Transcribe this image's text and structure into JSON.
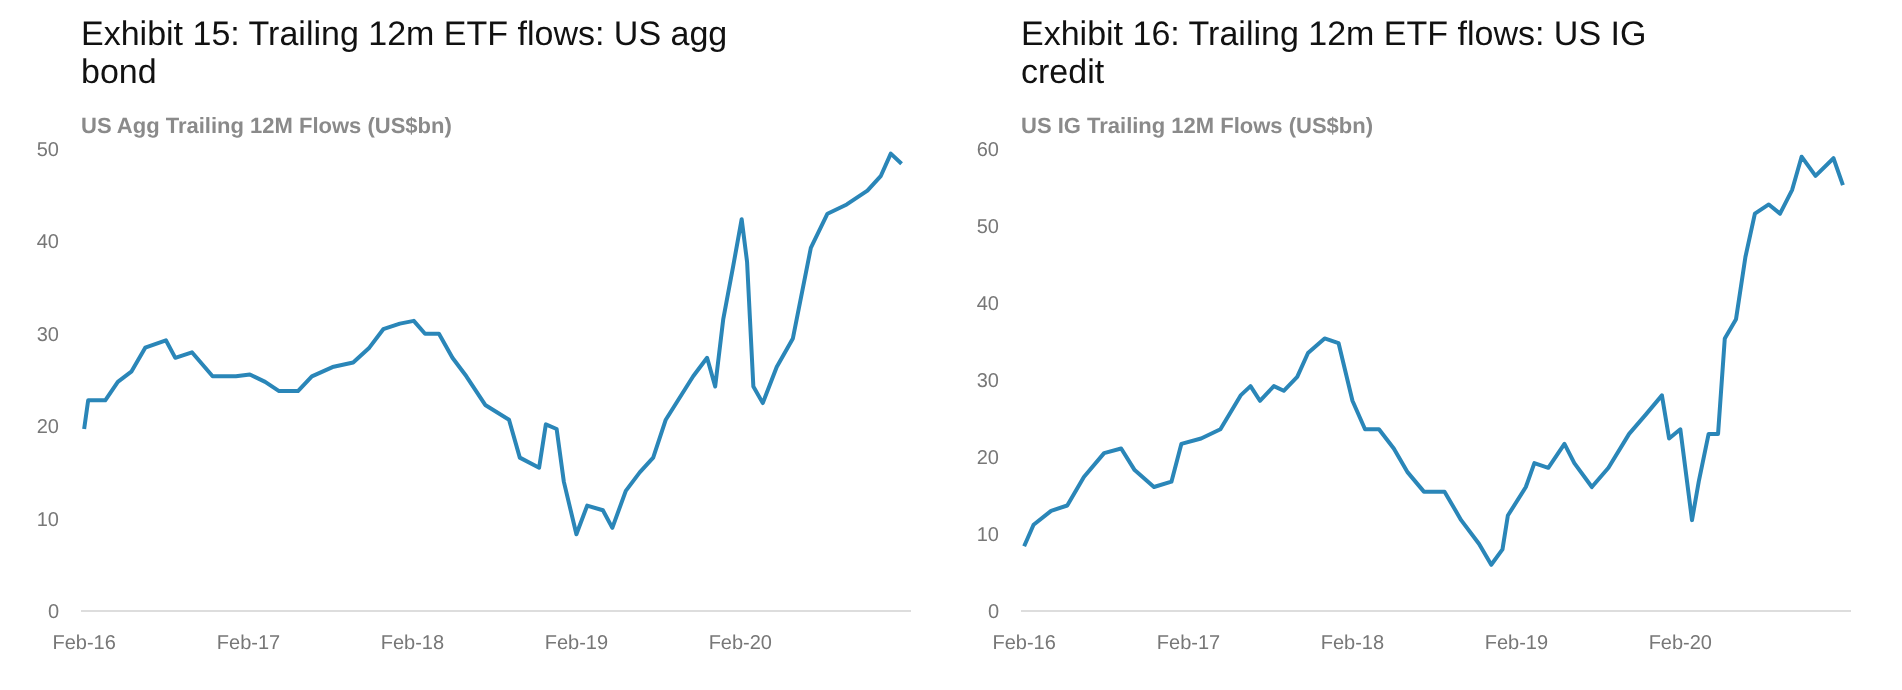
{
  "chart_data": [
    {
      "type": "line",
      "title": "Exhibit 15:  Trailing 12m ETF flows: US agg bond",
      "subtitle": "US Agg Trailing 12M Flows (US$bn)",
      "x": [
        "2016-02-01",
        "2016-02-10",
        "2016-03-19",
        "2016-04-16",
        "2016-05-16",
        "2016-06-16",
        "2016-08-01",
        "2016-08-22",
        "2016-09-28",
        "2016-11-13",
        "2017-01-04",
        "2017-02-04",
        "2017-03-10",
        "2017-04-10",
        "2017-05-22",
        "2017-06-22",
        "2017-08-07",
        "2017-09-22",
        "2017-10-28",
        "2017-11-28",
        "2018-01-04",
        "2018-02-04",
        "2018-03-01",
        "2018-04-01",
        "2018-05-01",
        "2018-06-01",
        "2018-07-13",
        "2018-09-04",
        "2018-09-28",
        "2018-11-10",
        "2018-11-25",
        "2018-12-19",
        "2019-01-04",
        "2019-02-01",
        "2019-02-25",
        "2019-04-01",
        "2019-04-22",
        "2019-05-22",
        "2019-06-22",
        "2019-07-22",
        "2019-08-19",
        "2019-10-19",
        "2019-11-19",
        "2019-12-07",
        "2019-12-25",
        "2020-01-16",
        "2020-02-04",
        "2020-02-16",
        "2020-03-01",
        "2020-03-22",
        "2020-04-22",
        "2020-05-28",
        "2020-07-07",
        "2020-08-13",
        "2020-09-25",
        "2020-11-10",
        "2020-12-10",
        "2021-01-01",
        "2021-01-25"
      ],
      "series": [
        {
          "color": "#2a86b8",
          "values": [
            19.7,
            22.8,
            22.8,
            24.8,
            25.9,
            28.5,
            29.3,
            27.4,
            28,
            25.4,
            25.4,
            25.6,
            24.8,
            23.8,
            23.8,
            25.4,
            26.4,
            26.9,
            28.5,
            30.5,
            31.1,
            31.4,
            30,
            30,
            27.4,
            25.4,
            22.3,
            20.7,
            16.6,
            15.5,
            20.2,
            19.7,
            14,
            8.3,
            11.4,
            10.9,
            9,
            13,
            15,
            16.6,
            20.7,
            25.4,
            27.4,
            24.3,
            31.6,
            37.3,
            42.4,
            37.8,
            24.3,
            22.5,
            26.4,
            29.5,
            39.3,
            43,
            44,
            45.5,
            47.1,
            49.5,
            48.4
          ]
        }
      ],
      "xlim": [
        "2016-01-25",
        "2021-02-15"
      ],
      "xticks": [
        {
          "value": "2016-02-01",
          "label": "Feb-16"
        },
        {
          "value": "2017-02-01",
          "label": "Feb-17"
        },
        {
          "value": "2018-02-01",
          "label": "Feb-18"
        },
        {
          "value": "2019-02-01",
          "label": "Feb-19"
        },
        {
          "value": "2020-02-01",
          "label": "Feb-20"
        }
      ],
      "ylim": [
        0,
        50
      ],
      "yticks": [
        0,
        10,
        20,
        30,
        40,
        50
      ],
      "line_style": "solid"
    },
    {
      "type": "line",
      "title": "Exhibit 16:  Trailing 12m ETF flows: US IG credit",
      "subtitle": "US IG Trailing 12M Flows (US$bn)",
      "x": [
        "2016-02-01",
        "2016-02-22",
        "2016-04-01",
        "2016-05-07",
        "2016-06-13",
        "2016-07-28",
        "2016-09-04",
        "2016-10-04",
        "2016-11-16",
        "2016-12-25",
        "2017-01-16",
        "2017-03-01",
        "2017-04-13",
        "2017-05-28",
        "2017-06-19",
        "2017-07-10",
        "2017-08-10",
        "2017-09-01",
        "2017-10-01",
        "2017-10-25",
        "2017-12-01",
        "2018-01-01",
        "2018-02-01",
        "2018-03-01",
        "2018-04-01",
        "2018-05-04",
        "2018-06-04",
        "2018-07-10",
        "2018-08-25",
        "2018-10-01",
        "2018-11-10",
        "2018-12-07",
        "2019-01-01",
        "2019-01-13",
        "2019-02-22",
        "2019-03-13",
        "2019-04-13",
        "2019-05-19",
        "2019-06-10",
        "2019-07-19",
        "2019-08-25",
        "2019-10-10",
        "2019-11-16",
        "2019-12-22",
        "2020-01-07",
        "2020-02-01",
        "2020-02-27",
        "2020-03-13",
        "2020-04-04",
        "2020-04-25",
        "2020-05-10",
        "2020-06-04",
        "2020-06-25",
        "2020-07-16",
        "2020-08-16",
        "2020-09-10",
        "2020-10-07",
        "2020-10-28",
        "2020-11-28",
        "2021-01-07",
        "2021-01-28"
      ],
      "series": [
        {
          "color": "#2a86b8",
          "values": [
            8.4,
            11.2,
            13,
            13.7,
            17.4,
            20.5,
            21.1,
            18.3,
            16.1,
            16.8,
            21.7,
            22.4,
            23.6,
            28,
            29.2,
            27.3,
            29.2,
            28.6,
            30.4,
            33.5,
            35.4,
            34.8,
            27.3,
            23.6,
            23.6,
            21.1,
            18,
            15.5,
            15.5,
            11.8,
            8.7,
            6,
            8,
            12.4,
            16.1,
            19.2,
            18.6,
            21.7,
            19.2,
            16.1,
            18.6,
            23,
            25.5,
            28,
            22.4,
            23.6,
            11.8,
            16.8,
            23,
            23,
            35.4,
            37.9,
            46,
            51.6,
            52.8,
            51.6,
            54.7,
            59,
            56.5,
            58.8,
            55.3
          ]
        }
      ],
      "xlim": [
        "2016-01-25",
        "2021-02-15"
      ],
      "xticks": [
        {
          "value": "2016-02-01",
          "label": "Feb-16"
        },
        {
          "value": "2017-02-01",
          "label": "Feb-17"
        },
        {
          "value": "2018-02-01",
          "label": "Feb-18"
        },
        {
          "value": "2019-02-01",
          "label": "Feb-19"
        },
        {
          "value": "2020-02-01",
          "label": "Feb-20"
        }
      ],
      "ylim": [
        0,
        60
      ],
      "yticks": [
        0,
        10,
        20,
        30,
        40,
        50,
        60
      ],
      "line_style": "solid"
    }
  ]
}
